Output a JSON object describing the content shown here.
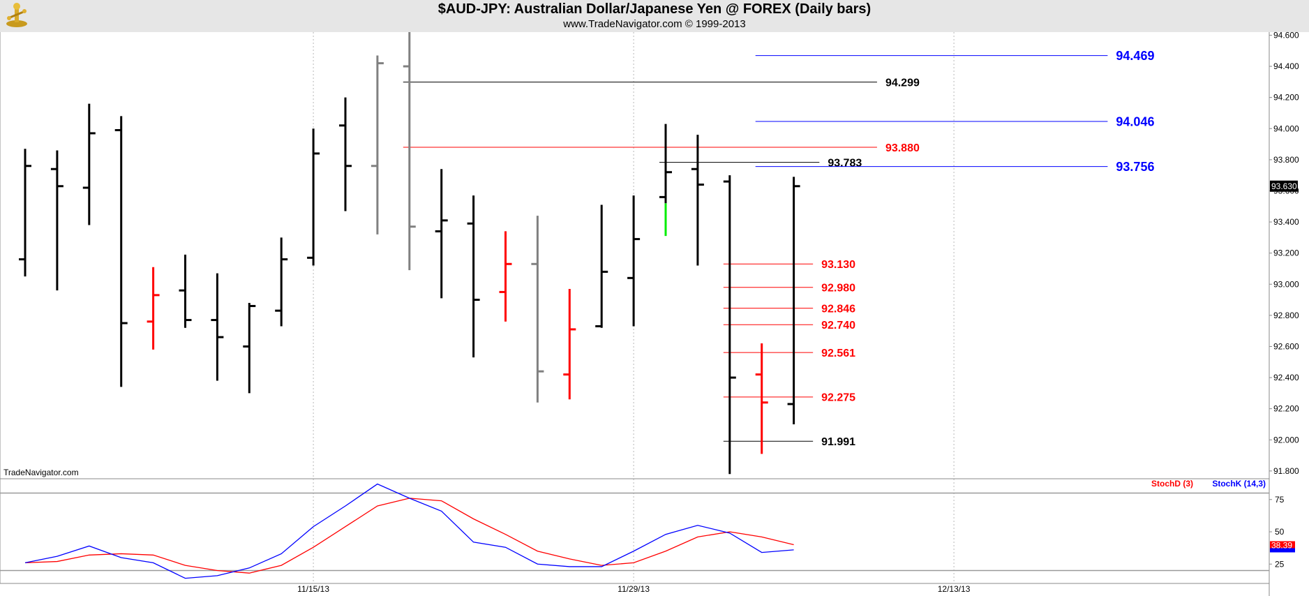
{
  "header": {
    "title": "$AUD-JPY:  Australian Dollar/Japanese Yen @ FOREX  (Daily bars)",
    "subtitle": "www.TradeNavigator.com © 1999-2013",
    "watermark": "TradeNavigator.com"
  },
  "colors": {
    "up": "#000000",
    "down": "#ff0000",
    "neutral": "#808080",
    "highlight": "#00ee00",
    "blue_level": "#0000ff",
    "stoch_d": "#ff0000",
    "stoch_k": "#0000ff"
  },
  "chart_data": {
    "type": "ohlc",
    "ylim": [
      91.75,
      94.62
    ],
    "price_ticks": [
      "94.600",
      "94.400",
      "94.200",
      "94.000",
      "93.800",
      "93.600",
      "93.400",
      "93.200",
      "93.000",
      "92.800",
      "92.600",
      "92.400",
      "92.200",
      "92.000",
      "91.800"
    ],
    "last_price": "93.630",
    "x_labels": [
      {
        "label": "11/15/13",
        "index": 9
      },
      {
        "label": "11/29/13",
        "index": 19
      },
      {
        "label": "12/13/13",
        "index": 29
      }
    ],
    "bars": [
      {
        "o": 93.16,
        "h": 93.87,
        "l": 93.05,
        "c": 93.76,
        "color": "up"
      },
      {
        "o": 93.74,
        "h": 93.86,
        "l": 92.96,
        "c": 93.63,
        "color": "up"
      },
      {
        "o": 93.62,
        "h": 94.16,
        "l": 93.38,
        "c": 93.97,
        "color": "up"
      },
      {
        "o": 93.99,
        "h": 94.08,
        "l": 92.34,
        "c": 92.75,
        "color": "up"
      },
      {
        "o": 92.76,
        "h": 93.11,
        "l": 92.58,
        "c": 92.93,
        "color": "down"
      },
      {
        "o": 92.96,
        "h": 93.19,
        "l": 92.72,
        "c": 92.77,
        "color": "up"
      },
      {
        "o": 92.77,
        "h": 93.07,
        "l": 92.38,
        "c": 92.66,
        "color": "up"
      },
      {
        "o": 92.6,
        "h": 92.88,
        "l": 92.3,
        "c": 92.86,
        "color": "up"
      },
      {
        "o": 92.83,
        "h": 93.3,
        "l": 92.73,
        "c": 93.16,
        "color": "up"
      },
      {
        "o": 93.17,
        "h": 94.0,
        "l": 93.12,
        "c": 93.84,
        "color": "up"
      },
      {
        "o": 94.02,
        "h": 94.2,
        "l": 93.47,
        "c": 93.76,
        "color": "up"
      },
      {
        "o": 93.76,
        "h": 94.47,
        "l": 93.32,
        "c": 94.42,
        "color": "neutral"
      },
      {
        "o": 94.4,
        "h": 94.62,
        "l": 93.09,
        "c": 93.37,
        "color": "neutral"
      },
      {
        "o": 93.34,
        "h": 93.74,
        "l": 92.91,
        "c": 93.41,
        "color": "up"
      },
      {
        "o": 93.39,
        "h": 93.57,
        "l": 92.53,
        "c": 92.9,
        "color": "up"
      },
      {
        "o": 92.95,
        "h": 93.34,
        "l": 92.76,
        "c": 93.13,
        "color": "down"
      },
      {
        "o": 93.13,
        "h": 93.44,
        "l": 92.24,
        "c": 92.44,
        "color": "neutral"
      },
      {
        "o": 92.42,
        "h": 92.97,
        "l": 92.26,
        "c": 92.71,
        "color": "down"
      },
      {
        "o": 92.73,
        "h": 93.51,
        "l": 92.72,
        "c": 93.08,
        "color": "up"
      },
      {
        "o": 93.04,
        "h": 93.57,
        "l": 92.73,
        "c": 93.29,
        "color": "up"
      },
      {
        "o": 93.56,
        "h": 94.03,
        "l": 93.31,
        "c": 93.72,
        "color": "up",
        "low_segment_color": "highlight"
      },
      {
        "o": 93.74,
        "h": 93.96,
        "l": 93.12,
        "c": 93.64,
        "color": "up"
      },
      {
        "o": 93.66,
        "h": 93.7,
        "l": 91.78,
        "c": 92.4,
        "color": "up"
      },
      {
        "o": 92.42,
        "h": 92.62,
        "l": 91.91,
        "c": 92.24,
        "color": "down"
      },
      {
        "o": 92.23,
        "h": 93.69,
        "l": 92.1,
        "c": 93.63,
        "color": "up"
      }
    ],
    "levels": [
      {
        "value": "94.469",
        "price": 94.469,
        "color": "blue_level",
        "from_index": 23,
        "to_index": 33.8,
        "label_size": 18
      },
      {
        "value": "94.299",
        "price": 94.299,
        "color": "up",
        "from_index": 12,
        "to_index": 26.6,
        "label_size": 16
      },
      {
        "value": "94.046",
        "price": 94.046,
        "color": "blue_level",
        "from_index": 23,
        "to_index": 33.8,
        "label_size": 18
      },
      {
        "value": "93.880",
        "price": 93.88,
        "color": "down",
        "from_index": 12,
        "to_index": 26.6,
        "label_size": 16
      },
      {
        "value": "93.783",
        "price": 93.783,
        "color": "up",
        "from_index": 20,
        "to_index": 24.8,
        "label_size": 16
      },
      {
        "value": "93.756",
        "price": 93.756,
        "color": "blue_level",
        "from_index": 23,
        "to_index": 33.8,
        "label_size": 18
      },
      {
        "value": "93.130",
        "price": 93.13,
        "color": "down",
        "from_index": 22,
        "to_index": 24.6,
        "label_size": 16
      },
      {
        "value": "92.980",
        "price": 92.98,
        "color": "down",
        "from_index": 22,
        "to_index": 24.6,
        "label_size": 16
      },
      {
        "value": "92.846",
        "price": 92.846,
        "color": "down",
        "from_index": 22,
        "to_index": 24.6,
        "label_size": 16
      },
      {
        "value": "92.740",
        "price": 92.74,
        "color": "down",
        "from_index": 22,
        "to_index": 24.6,
        "label_size": 16
      },
      {
        "value": "92.561",
        "price": 92.561,
        "color": "down",
        "from_index": 22,
        "to_index": 24.6,
        "label_size": 16
      },
      {
        "value": "92.275",
        "price": 92.275,
        "color": "down",
        "from_index": 22,
        "to_index": 24.6,
        "label_size": 16
      },
      {
        "value": "91.991",
        "price": 91.991,
        "color": "up",
        "from_index": 22,
        "to_index": 24.6,
        "label_size": 16
      }
    ],
    "stochastic": {
      "ylim": [
        10,
        90
      ],
      "ticks": [
        "75",
        "50",
        "25"
      ],
      "bands": [
        80,
        20
      ],
      "legend_d": "StochD (3)",
      "legend_k": "StochK (14,3)",
      "value_badge": "38.39",
      "d_values": [
        26,
        27,
        32,
        33,
        32,
        24,
        20,
        18,
        24,
        38,
        54,
        70,
        76,
        74,
        60,
        48,
        35,
        29,
        24,
        26,
        35,
        46,
        50,
        46,
        40
      ],
      "k_values": [
        26,
        31,
        39,
        30,
        26,
        14,
        16,
        22,
        33,
        54,
        70,
        87,
        76,
        66,
        42,
        38,
        25,
        23,
        23,
        35,
        48,
        55,
        49,
        34,
        36
      ]
    }
  }
}
